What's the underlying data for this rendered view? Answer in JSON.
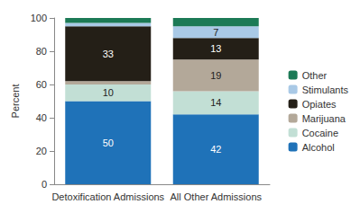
{
  "chart_data": {
    "type": "bar",
    "stacked": true,
    "data_labels": true,
    "grid": false,
    "legend": "right",
    "y_label": "Percent",
    "categories": [
      "Detoxification Admissions",
      "All Other Admissions"
    ],
    "ylim": [
      0,
      100
    ],
    "yticks": [
      0,
      20,
      40,
      60,
      80,
      100
    ],
    "series": [
      {
        "name": "Alcohol",
        "color": "#1f72b8",
        "values": [
          50,
          42
        ],
        "value_labels": [
          "50",
          "42"
        ]
      },
      {
        "name": "Cocaine",
        "color": "#c2dfd5",
        "values": [
          10,
          14
        ],
        "value_labels": [
          "10",
          "14"
        ]
      },
      {
        "name": "Marijuana",
        "color": "#b3a899",
        "values": [
          2,
          19
        ],
        "value_labels": [
          null,
          "19"
        ]
      },
      {
        "name": "Opiates",
        "color": "#241f17",
        "values": [
          33,
          13
        ],
        "value_labels": [
          "33",
          "13"
        ]
      },
      {
        "name": "Stimulants",
        "color": "#a9c9e6",
        "values": [
          2,
          7
        ],
        "value_labels": [
          null,
          "7"
        ]
      },
      {
        "name": "Other",
        "color": "#1c7a56",
        "values": [
          3,
          5
        ],
        "value_labels": [
          null,
          null
        ]
      }
    ]
  }
}
